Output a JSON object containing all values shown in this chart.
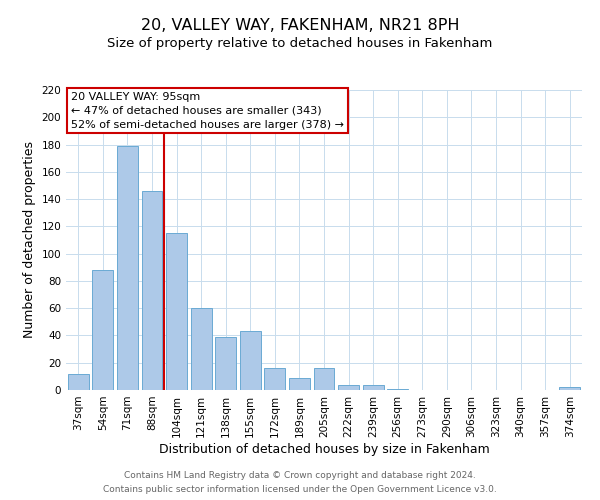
{
  "title": "20, VALLEY WAY, FAKENHAM, NR21 8PH",
  "subtitle": "Size of property relative to detached houses in Fakenham",
  "xlabel": "Distribution of detached houses by size in Fakenham",
  "ylabel": "Number of detached properties",
  "bar_labels": [
    "37sqm",
    "54sqm",
    "71sqm",
    "88sqm",
    "104sqm",
    "121sqm",
    "138sqm",
    "155sqm",
    "172sqm",
    "189sqm",
    "205sqm",
    "222sqm",
    "239sqm",
    "256sqm",
    "273sqm",
    "290sqm",
    "306sqm",
    "323sqm",
    "340sqm",
    "357sqm",
    "374sqm"
  ],
  "bar_values": [
    12,
    88,
    179,
    146,
    115,
    60,
    39,
    43,
    16,
    9,
    16,
    4,
    4,
    1,
    0,
    0,
    0,
    0,
    0,
    0,
    2
  ],
  "bar_color": "#adc9e8",
  "bar_edge_color": "#6aaad4",
  "vline_x": 3.5,
  "vline_color": "#cc0000",
  "ylim": [
    0,
    220
  ],
  "yticks": [
    0,
    20,
    40,
    60,
    80,
    100,
    120,
    140,
    160,
    180,
    200,
    220
  ],
  "annotation_line1": "20 VALLEY WAY: 95sqm",
  "annotation_line2": "← 47% of detached houses are smaller (343)",
  "annotation_line3": "52% of semi-detached houses are larger (378) →",
  "footer_line1": "Contains HM Land Registry data © Crown copyright and database right 2024.",
  "footer_line2": "Contains public sector information licensed under the Open Government Licence v3.0.",
  "background_color": "#ffffff",
  "grid_color": "#c8dced",
  "title_fontsize": 11.5,
  "subtitle_fontsize": 9.5,
  "axis_label_fontsize": 9,
  "tick_fontsize": 7.5,
  "footer_fontsize": 6.5,
  "ann_fontsize": 8.0
}
